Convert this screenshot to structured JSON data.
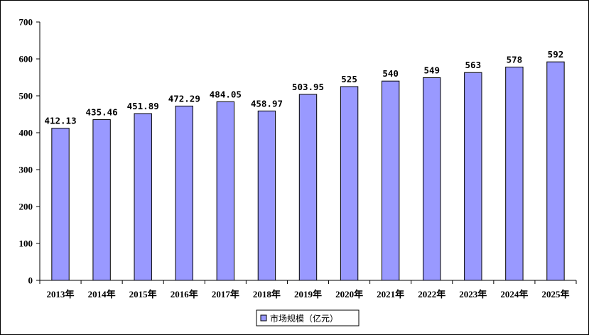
{
  "chart_data": {
    "type": "bar",
    "categories": [
      "2013年",
      "2014年",
      "2015年",
      "2016年",
      "2017年",
      "2018年",
      "2019年",
      "2020年",
      "2021年",
      "2022年",
      "2023年",
      "2024年",
      "2025年"
    ],
    "values": [
      412.13,
      435.46,
      451.89,
      472.29,
      484.05,
      458.97,
      503.95,
      525,
      540,
      549,
      563,
      578,
      592
    ],
    "value_labels": [
      "412.13",
      "435.46",
      "451.89",
      "472.29",
      "484.05",
      "458.97",
      "503.95",
      "525",
      "540",
      "549",
      "563",
      "578",
      "592"
    ],
    "series": [
      {
        "name": "市场规模（亿元）",
        "color": "#9999ff"
      }
    ],
    "ylim": [
      0,
      700
    ],
    "yticks": [
      0,
      100,
      200,
      300,
      400,
      500,
      600,
      700
    ],
    "ytick_labels": [
      "0",
      "100",
      "200",
      "300",
      "400",
      "500",
      "600",
      "700"
    ],
    "grid": false,
    "legend_position": "bottom-center",
    "bar_color": "#9999ff",
    "bar_stroke": "#000000"
  }
}
